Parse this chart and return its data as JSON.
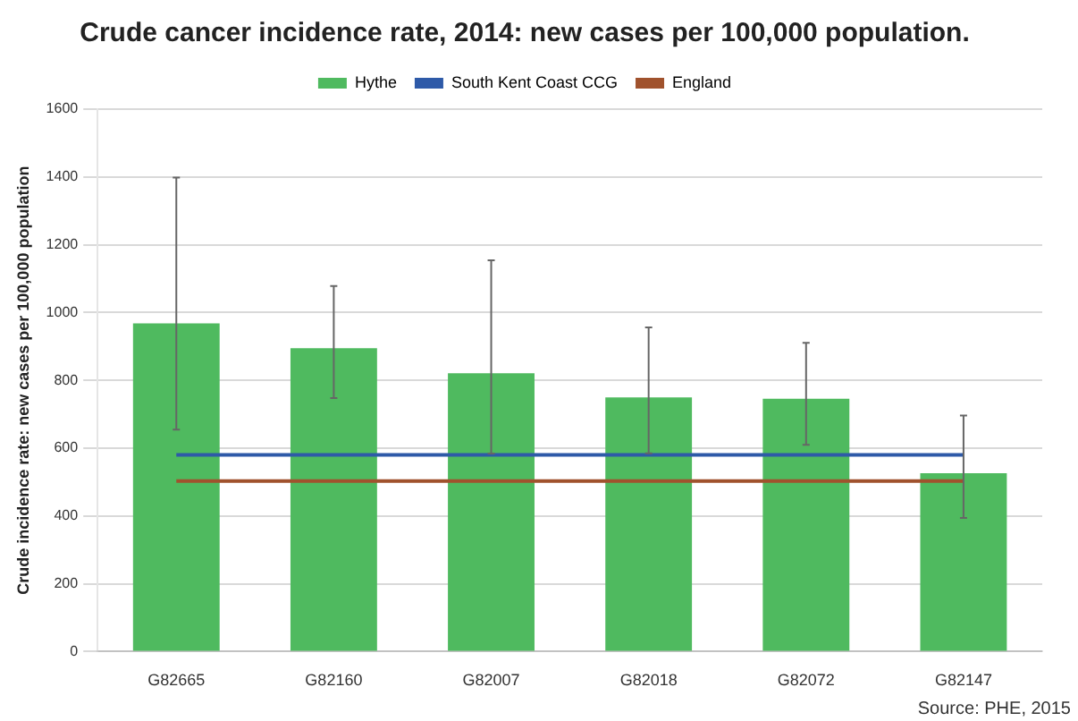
{
  "chart_data": {
    "type": "bar",
    "title": "Crude cancer incidence rate, 2014: new cases per 100,000 population.",
    "ylabel": "Crude incidence rate: new cases per 100,000 population",
    "categories": [
      "G82665",
      "G82160",
      "G82007",
      "G82018",
      "G82072",
      "G82147"
    ],
    "series": [
      {
        "name": "Hythe",
        "color": "#4fba5f",
        "values": [
          968,
          895,
          821,
          750,
          746,
          526
        ],
        "errors": [
          [
            655,
            1398
          ],
          [
            748,
            1078
          ],
          [
            584,
            1154
          ],
          [
            585,
            956
          ],
          [
            610,
            911
          ],
          [
            394,
            696
          ]
        ]
      },
      {
        "name": "South Kent Coast CCG",
        "type": "line",
        "color": "#2e5aa8",
        "values": [
          580,
          580,
          580,
          580,
          580,
          580
        ]
      },
      {
        "name": "England",
        "type": "line",
        "color": "#a0522d",
        "values": [
          503,
          503,
          503,
          503,
          503,
          503
        ]
      }
    ],
    "ylim": [
      0,
      1600
    ],
    "yticks": [
      0,
      200,
      400,
      600,
      800,
      1000,
      1200,
      1400,
      1600
    ],
    "grid": "y",
    "legend": "top",
    "marker": "none",
    "annotations": [
      "Source: PHE, 2015"
    ]
  }
}
